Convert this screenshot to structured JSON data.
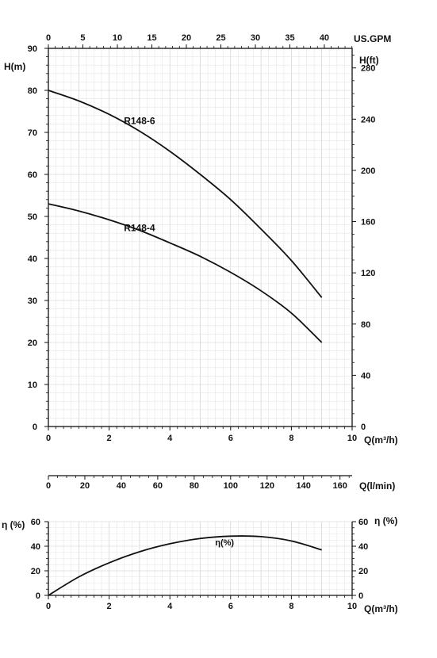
{
  "chart_data": [
    {
      "type": "line",
      "xlabel": "Q(m³/h)",
      "ylabel": "H(m)",
      "ylabel_right": "H(ft)",
      "x_top_label": "US.GPM",
      "x_bottom2_label": "Q(l/min)",
      "xlim": [
        0,
        10
      ],
      "ylim": [
        0,
        90
      ],
      "y_right_lim_ft": [
        0,
        295.28
      ],
      "x_ticks": [
        "0",
        "2",
        "4",
        "6",
        "8",
        "10"
      ],
      "y_ticks": [
        "0",
        "10",
        "20",
        "30",
        "40",
        "50",
        "60",
        "70",
        "80",
        "90"
      ],
      "y_right_ticks": [
        "0",
        "40",
        "80",
        "120",
        "160",
        "200",
        "240",
        "280"
      ],
      "x_top_ticks": [
        "0",
        "5",
        "10",
        "15",
        "20",
        "25",
        "30",
        "35",
        "40"
      ],
      "x_lpm_ticks": [
        "0",
        "20",
        "40",
        "60",
        "80",
        "100",
        "120",
        "140",
        "160"
      ],
      "grid": true,
      "series": [
        {
          "name": "R148-6",
          "x": [
            0,
            1,
            2,
            3,
            4,
            5,
            6,
            7,
            8,
            9
          ],
          "y": [
            80,
            77.5,
            74.3,
            70.3,
            65.5,
            60.0,
            54.0,
            47.0,
            39.5,
            30.7
          ]
        },
        {
          "name": "R148-4",
          "x": [
            0,
            1,
            2,
            3,
            4,
            5,
            6,
            7,
            8,
            9
          ],
          "y": [
            53,
            51.3,
            49.2,
            46.7,
            43.7,
            40.5,
            36.7,
            32.3,
            27.0,
            20.0
          ]
        }
      ]
    },
    {
      "type": "line",
      "xlabel": "Q(m³/h)",
      "ylabel": "η (%)",
      "ylabel_right": "η (%)",
      "xlim": [
        0,
        10
      ],
      "ylim": [
        0,
        60
      ],
      "x_ticks": [
        "0",
        "2",
        "4",
        "6",
        "8",
        "10"
      ],
      "y_ticks": [
        "0",
        "20",
        "40",
        "60"
      ],
      "grid": true,
      "series": [
        {
          "name": "η(%)",
          "x": [
            0,
            1,
            2,
            3,
            4,
            5,
            6,
            7,
            8,
            9
          ],
          "y": [
            0,
            15,
            26.5,
            35.5,
            42,
            46.3,
            48.2,
            47.8,
            44.3,
            37
          ]
        }
      ]
    }
  ]
}
